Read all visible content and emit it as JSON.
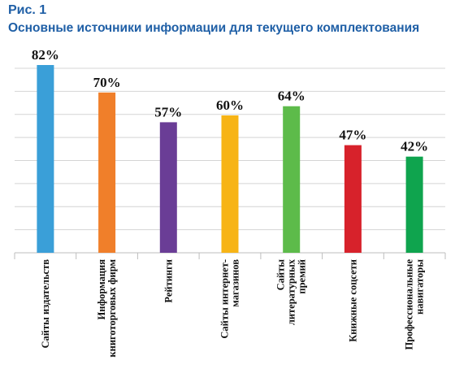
{
  "figure": {
    "label": "Рис. 1",
    "title": "Основные источники информации для текущего комплектования"
  },
  "chart_data": {
    "type": "bar",
    "title": "Основные источники информации для текущего комплектования",
    "categories": [
      "Сайты издательств",
      "Информация книготорговых фирм",
      "Рейтинги",
      "Сайты интернет-магазинов",
      "Сайты литературных премий",
      "Книжные соцсети",
      "Профессиональные навигаторы"
    ],
    "category_lines": [
      [
        "Сайты издательств"
      ],
      [
        "Информация",
        "книготорговых фирм"
      ],
      [
        "Рейтинги"
      ],
      [
        "Сайты интернет-",
        "магазинов"
      ],
      [
        "Сайты",
        "литературных",
        "премий"
      ],
      [
        "Книжные соцсети"
      ],
      [
        "Профессиональные",
        "навигаторы"
      ]
    ],
    "values": [
      82,
      70,
      57,
      60,
      64,
      47,
      42
    ],
    "value_labels": [
      "82%",
      "70%",
      "57%",
      "60%",
      "64%",
      "47%",
      "42%"
    ],
    "colors": [
      "#3a9fd8",
      "#f07f2a",
      "#6a3d96",
      "#f7b416",
      "#5dbb4a",
      "#d7222b",
      "#0fa44e"
    ],
    "ylim": [
      0,
      82
    ],
    "grid": true,
    "gridline_count": 8,
    "legend": "none"
  }
}
